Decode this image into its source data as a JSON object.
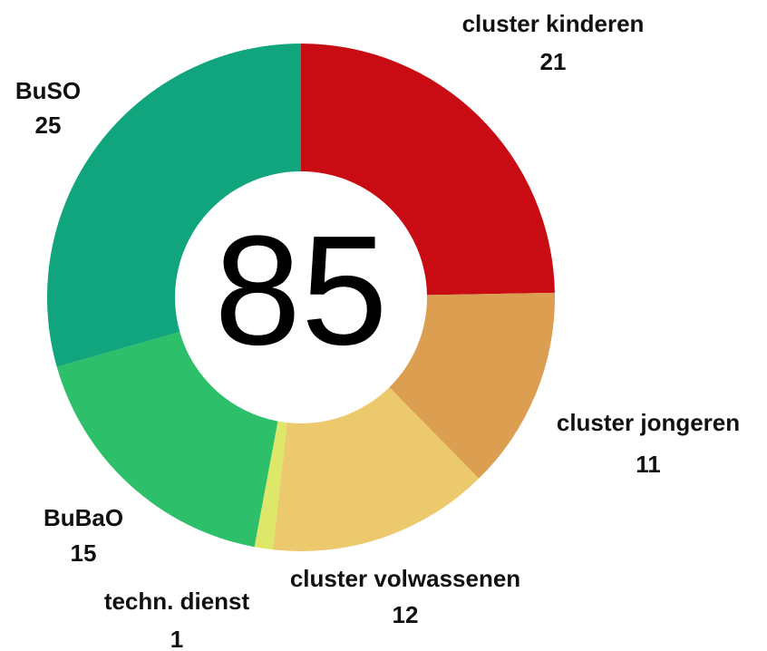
{
  "chart_data": {
    "type": "donut",
    "categories": [
      "cluster kinderen",
      "cluster jongeren",
      "cluster volwassenen",
      "techn. dienst",
      "BuBaO",
      "BuSO"
    ],
    "values": [
      21,
      11,
      12,
      1,
      15,
      25
    ],
    "colors": [
      "#c90c13",
      "#dc9f52",
      "#ecc96c",
      "#dde86b",
      "#2dbf69",
      "#11a57e"
    ],
    "total": 85
  }
}
